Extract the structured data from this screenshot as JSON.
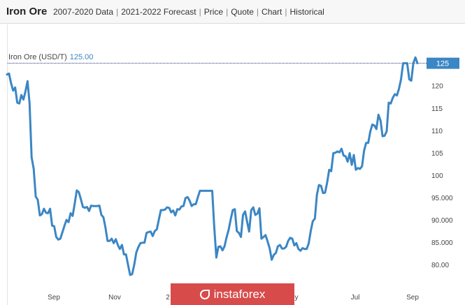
{
  "header": {
    "brand": "Iron Ore",
    "links": [
      "2007-2020 Data",
      "2021-2022 Forecast",
      "Price",
      "Quote",
      "Chart",
      "Historical"
    ]
  },
  "legend": {
    "name": "Iron Ore (USD/T)",
    "value": "125.00"
  },
  "watermark": "instaforex",
  "colors": {
    "line": "#3b86c4",
    "price_tag": "#3b86c4",
    "ref_line": "#1f2a6b",
    "watermark_bg": "#d74b4b"
  },
  "chart_data": {
    "type": "line",
    "series": [
      {
        "name": "Iron Ore (USD/T)",
        "color": "#3b86c4",
        "values": [
          122.5,
          122.7,
          120.5,
          118.9,
          119.6,
          116.2,
          116.0,
          117.9,
          116.9,
          118.7,
          121.0,
          116.0,
          104.0,
          101.4,
          95.2,
          94.5,
          91.0,
          91.3,
          92.5,
          91.6,
          91.5,
          92.5,
          88.7,
          88.6,
          86.2,
          85.6,
          85.8,
          87.2,
          88.7,
          90.0,
          89.5,
          91.5,
          90.9,
          93.7,
          96.6,
          96.2,
          94.6,
          92.9,
          92.7,
          92.9,
          92.0,
          93.2,
          93.1,
          93.1,
          93.1,
          93.2,
          91.1,
          90.6,
          88.2,
          85.3,
          85.3,
          85.8,
          84.8,
          85.7,
          84.4,
          83.5,
          84.4,
          82.3,
          82.3,
          79.9,
          77.7,
          77.9,
          80.0,
          82.7,
          83.9,
          84.8,
          84.9,
          84.9,
          87.1,
          87.3,
          87.4,
          86.4,
          87.5,
          87.9,
          90.1,
          92.2,
          92.2,
          92.3,
          92.8,
          92.7,
          91.7,
          92.1,
          91.0,
          92.4,
          92.3,
          93.0,
          93.1,
          94.9,
          95.1,
          94.3,
          93.1,
          93.5,
          93.5,
          95.1,
          96.5,
          96.5,
          96.5,
          96.5,
          96.5,
          96.5,
          96.5,
          88.4,
          81.6,
          84.0,
          84.1,
          83.2,
          84.1,
          86.1,
          87.8,
          90.1,
          92.2,
          92.4,
          87.5,
          87.1,
          86.2,
          91.1,
          91.9,
          89.6,
          87.4,
          92.2,
          92.8,
          91.1,
          91.4,
          92.6,
          85.8,
          86.2,
          86.6,
          85.2,
          83.6,
          81.1,
          82.2,
          82.6,
          84.1,
          84.4,
          83.6,
          83.6,
          84.0,
          85.3,
          86.0,
          85.8,
          84.3,
          84.8,
          83.5,
          83.1,
          83.7,
          83.5,
          83.5,
          84.7,
          87.5,
          89.7,
          90.3,
          95.6,
          97.8,
          97.6,
          96.0,
          96.1,
          98.4,
          101.2,
          100.9,
          104.9,
          105.0,
          105.3,
          105.1,
          105.9,
          104.4,
          104.2,
          103.0,
          104.9,
          102.3,
          104.5,
          101.2,
          101.6,
          101.4,
          102.0,
          105.5,
          107.2,
          107.2,
          109.7,
          111.3,
          111.1,
          110.3,
          113.5,
          112.2,
          108.7,
          108.8,
          109.8,
          116.2,
          116.0,
          117.3,
          118.1,
          117.8,
          119.3,
          121.4,
          125.0,
          125.0,
          125.0,
          121.4,
          121.1,
          125.0,
          126.3,
          125.0
        ]
      }
    ],
    "xlabel": "",
    "ylabel": "",
    "x_ticks": [
      "Sep",
      "Nov",
      "2",
      "y",
      "Jul",
      "Sep"
    ],
    "y_ticks": [
      80,
      85,
      90,
      95,
      100,
      105,
      110,
      115,
      120,
      125
    ],
    "y_tick_labels": [
      "80.00",
      "85.000",
      "90.000",
      "95.000",
      "100",
      "105",
      "110",
      "115",
      "120",
      "125"
    ],
    "ylim": [
      75.2,
      130.4
    ],
    "last_value": 125,
    "last_value_label": "125",
    "reference_line": 125,
    "grid": false,
    "legend": "top-left"
  }
}
